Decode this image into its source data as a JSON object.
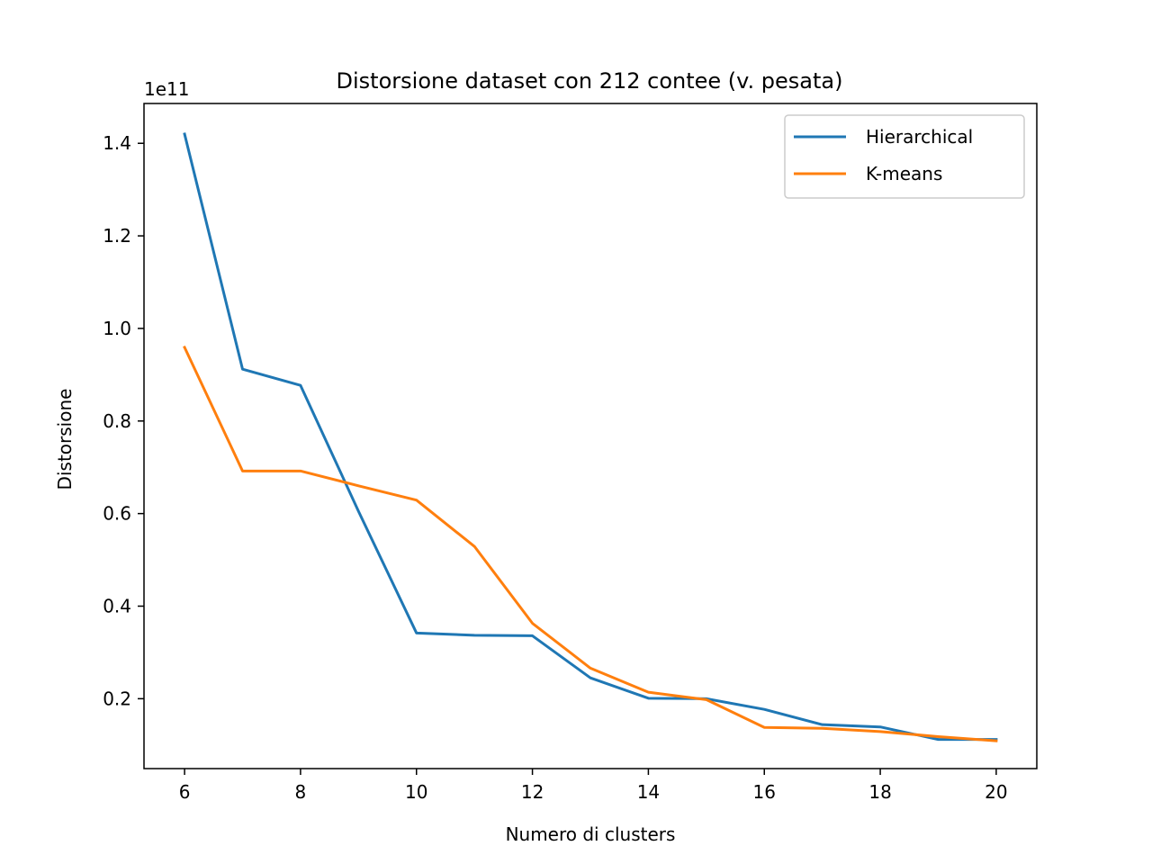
{
  "chart_data": {
    "type": "line",
    "title": "Distorsione dataset con 212 contee (v. pesata)",
    "xlabel": "Numero di clusters",
    "ylabel": "Distorsione",
    "y_offset_label": "1e11",
    "x": [
      6,
      7,
      8,
      9,
      10,
      11,
      12,
      13,
      14,
      15,
      16,
      17,
      18,
      19,
      20
    ],
    "xlim": [
      5.3,
      20.7
    ],
    "ylim": [
      0.049,
      1.486
    ],
    "x_ticks": [
      6,
      8,
      10,
      12,
      14,
      16,
      18,
      20
    ],
    "x_tick_labels": [
      "6",
      "8",
      "10",
      "12",
      "14",
      "16",
      "18",
      "20"
    ],
    "y_ticks": [
      0.2,
      0.4,
      0.6,
      0.8,
      1.0,
      1.2,
      1.4
    ],
    "y_tick_labels": [
      "0.2",
      "0.4",
      "0.6",
      "0.8",
      "1.0",
      "1.2",
      "1.4"
    ],
    "grid": false,
    "legend_position": "top-right",
    "series": [
      {
        "name": "Hierarchical",
        "color": "#1f77b4",
        "values": [
          1.42,
          0.912,
          0.877,
          0.605,
          0.342,
          0.337,
          0.336,
          0.245,
          0.201,
          0.2,
          0.177,
          0.144,
          0.139,
          0.112,
          0.112
        ]
      },
      {
        "name": "K-means",
        "color": "#ff7f0e",
        "values": [
          0.959,
          0.692,
          0.692,
          0.66,
          0.629,
          0.529,
          0.363,
          0.266,
          0.214,
          0.198,
          0.138,
          0.136,
          0.129,
          0.118,
          0.109
        ]
      }
    ]
  }
}
